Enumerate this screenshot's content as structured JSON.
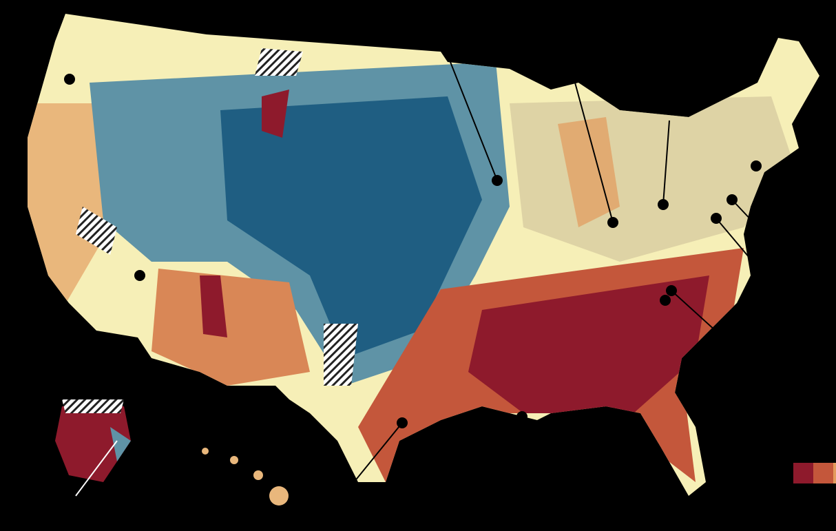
{
  "map": {
    "legend_colors": [
      "#8e1a2c",
      "#c4573b",
      "#e39a5c"
    ]
  }
}
